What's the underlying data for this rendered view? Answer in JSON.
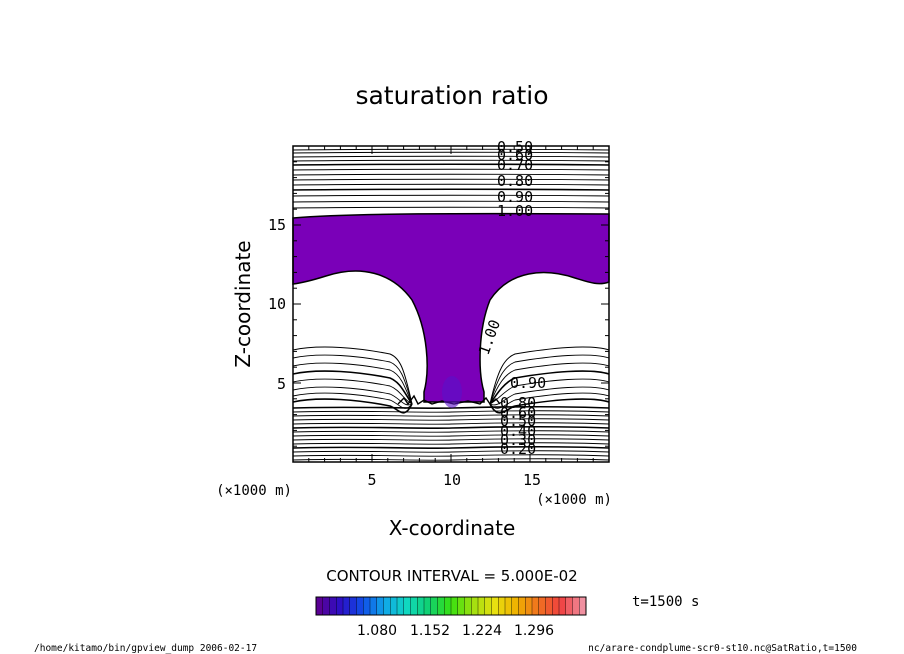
{
  "chart_data": {
    "type": "contour",
    "title": "saturation ratio",
    "xlabel": "X-coordinate",
    "ylabel": "Z-coordinate",
    "x_unit_label": "(×1000 m)",
    "z_unit_label": "(×1000 m)",
    "xlim": [
      0,
      20
    ],
    "ylim": [
      0,
      20
    ],
    "x_ticks": [
      "5",
      "10",
      "15"
    ],
    "y_ticks": [
      "5",
      "10",
      "15"
    ],
    "contour_interval_text": "CONTOUR INTERVAL = 5.000E-02",
    "contour_labels": [
      "0.50",
      "0.60",
      "0.70",
      "0.80",
      "0.90",
      "1.00",
      "1.00",
      "0.90",
      "0.80",
      "0.60",
      "0.50",
      "0.40",
      "0.30",
      "0.20"
    ],
    "shaded_threshold": 1.0,
    "shade_color": "#7a00b8",
    "colorbar_ticks": [
      "1.080",
      "1.152",
      "1.224",
      "1.296"
    ],
    "colorbar_colors": [
      "#5a0094",
      "#2a10c8",
      "#1050e8",
      "#10a8e8",
      "#10d8c0",
      "#10d070",
      "#38e010",
      "#a0e010",
      "#e8e010",
      "#f0b000",
      "#f07020",
      "#f04040",
      "#f090a0"
    ],
    "time_text": "t=1500 s"
  },
  "footer": {
    "left": "/home/kitamo/bin/gpview_dump  2006-02-17",
    "right": "nc/arare-condplume-scr0-st10.nc@SatRatio,t=1500"
  }
}
